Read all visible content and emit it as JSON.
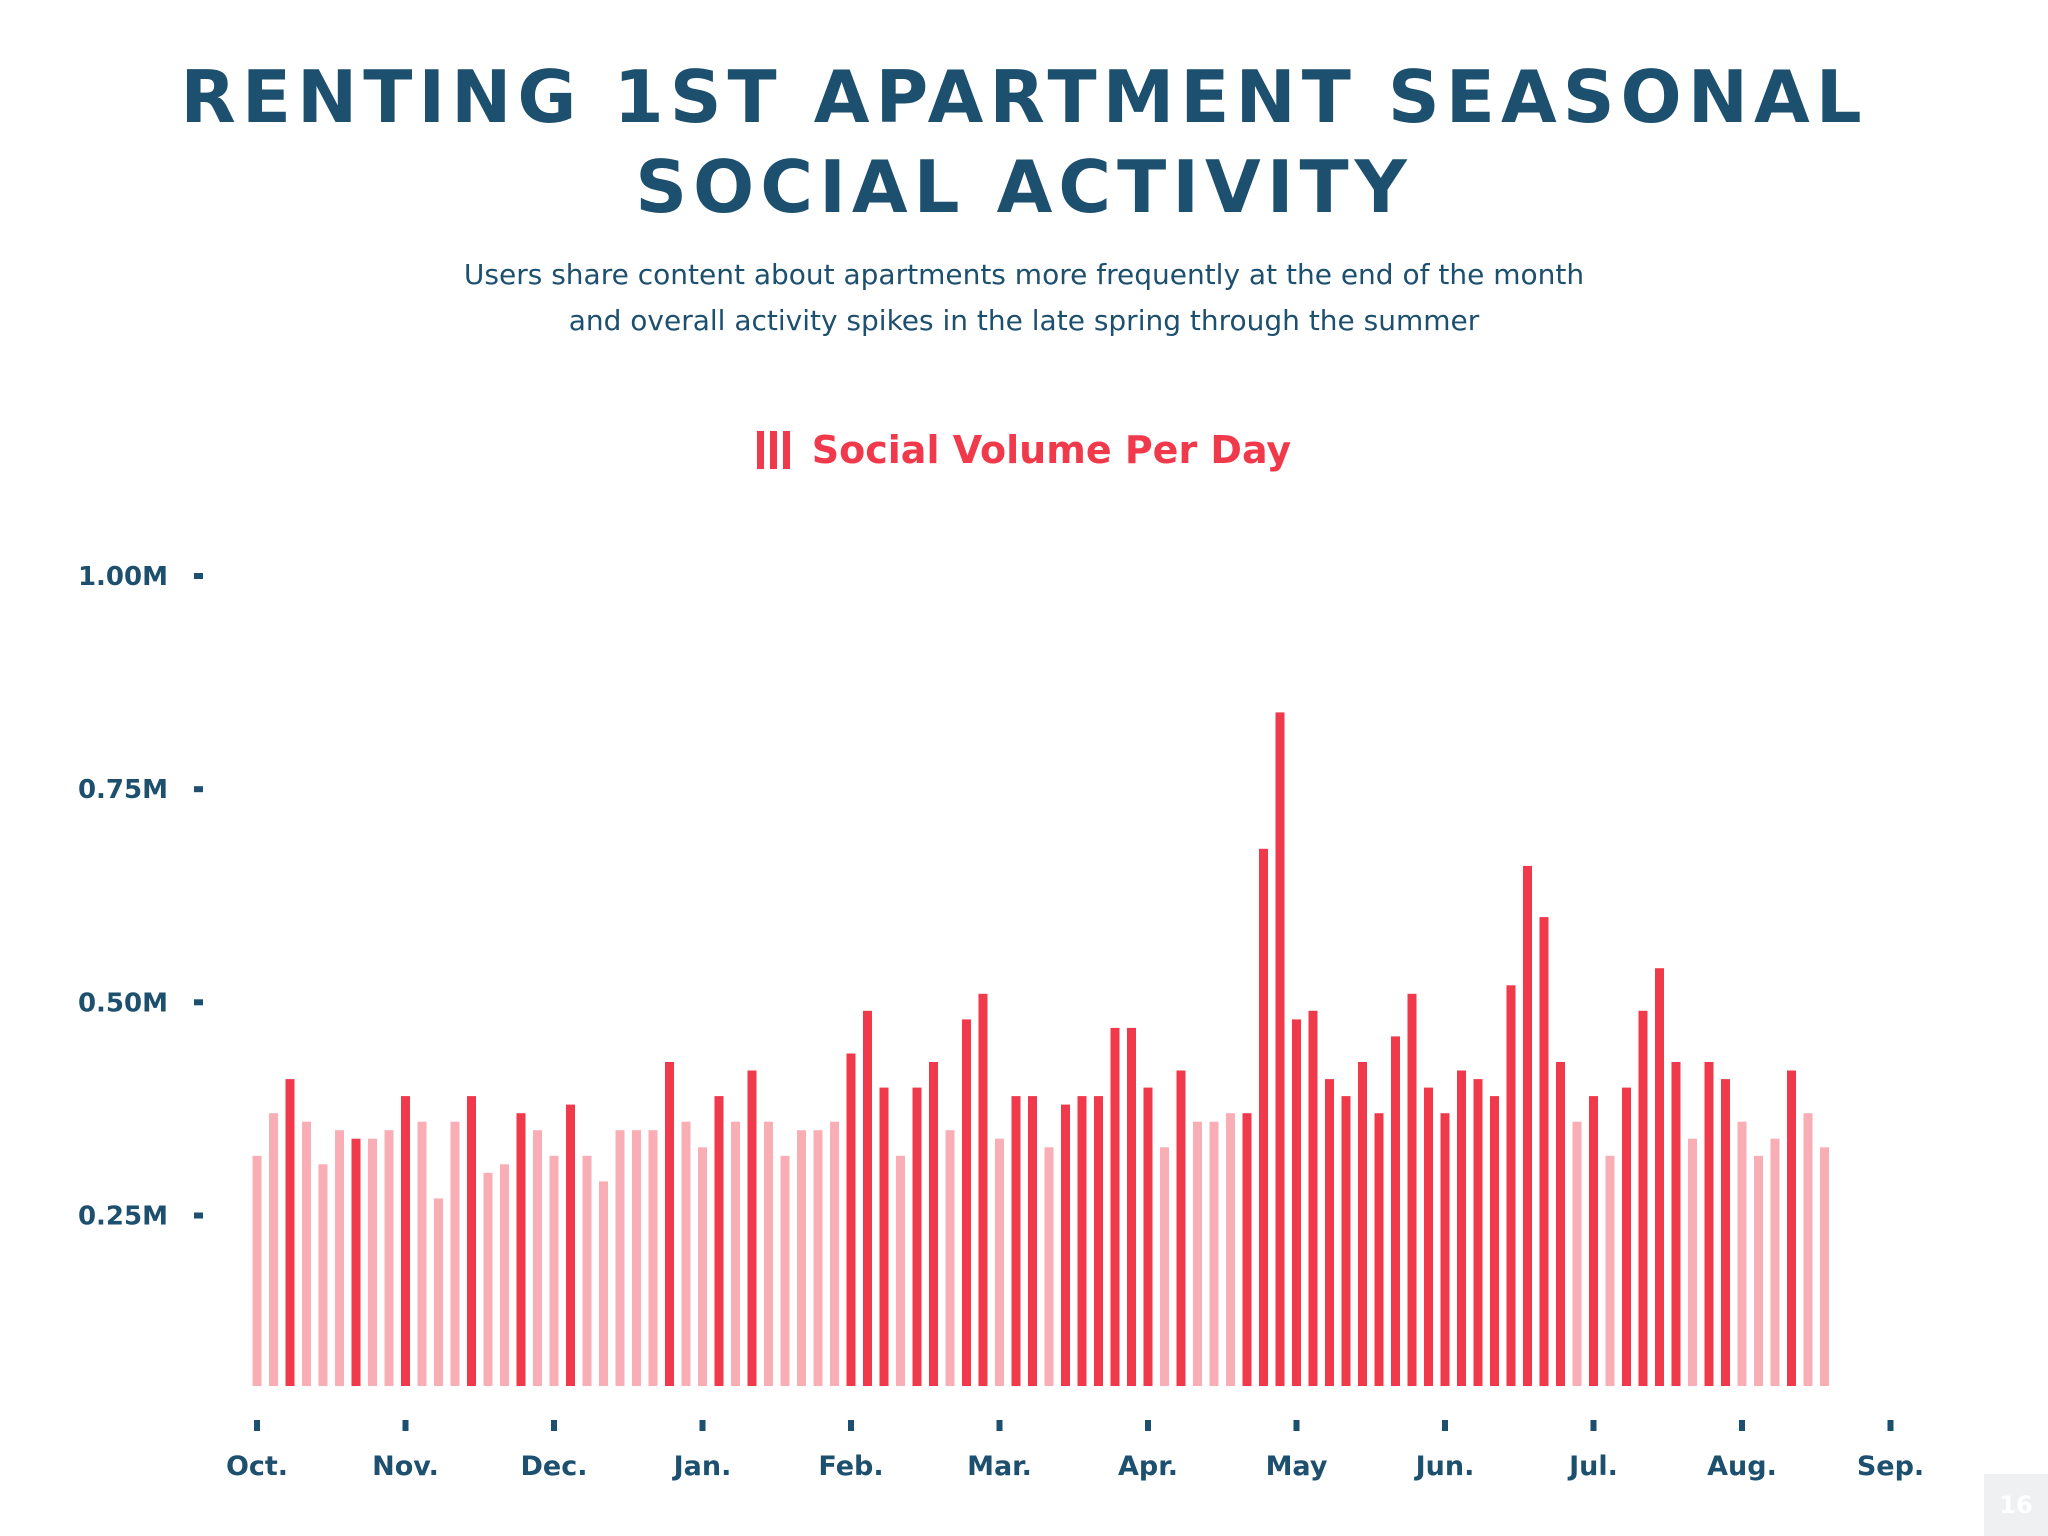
{
  "header": {
    "title_line1": "RENTING 1ST APARTMENT SEASONAL",
    "title_line2": "SOCIAL ACTIVITY",
    "subtitle_line1": "Users share content about apartments more frequently at the end of the month",
    "subtitle_line2": "and overall activity spikes in the late spring through the summer"
  },
  "legend": {
    "label": "Social Volume Per Day"
  },
  "page_number": "16",
  "colors": {
    "strong": "#f0394a",
    "light": "#f9aeb5",
    "text": "#1d4f6e"
  },
  "chart_data": {
    "type": "bar",
    "title": "RENTING 1ST APARTMENT SEASONAL SOCIAL ACTIVITY",
    "series_name": "Social Volume Per Day",
    "y_ticks": [
      {
        "value": 1.0,
        "label": "1.00M"
      },
      {
        "value": 0.75,
        "label": "0.75M"
      },
      {
        "value": 0.5,
        "label": "0.50M"
      },
      {
        "value": 0.25,
        "label": "0.25M"
      }
    ],
    "x_ticks": [
      {
        "index": 0,
        "label": "Oct."
      },
      {
        "index": 9,
        "label": "Nov."
      },
      {
        "index": 18,
        "label": "Dec."
      },
      {
        "index": 27,
        "label": "Jan."
      },
      {
        "index": 36,
        "label": "Feb."
      },
      {
        "index": 45,
        "label": "Mar."
      },
      {
        "index": 54,
        "label": "Apr."
      },
      {
        "index": 63,
        "label": "May"
      },
      {
        "index": 72,
        "label": "Jun."
      },
      {
        "index": 81,
        "label": "Jul."
      },
      {
        "index": 90,
        "label": "Aug."
      },
      {
        "index": 99,
        "label": "Sep."
      }
    ],
    "ylim": [
      0.05,
      1.0
    ],
    "values": [
      0.32,
      0.37,
      0.41,
      0.36,
      0.31,
      0.35,
      0.34,
      0.34,
      0.35,
      0.39,
      0.36,
      0.27,
      0.36,
      0.39,
      0.3,
      0.31,
      0.37,
      0.35,
      0.32,
      0.38,
      0.32,
      0.29,
      0.35,
      0.35,
      0.35,
      0.43,
      0.36,
      0.33,
      0.39,
      0.36,
      0.42,
      0.36,
      0.32,
      0.35,
      0.35,
      0.36,
      0.44,
      0.49,
      0.4,
      0.32,
      0.4,
      0.43,
      0.35,
      0.48,
      0.51,
      0.34,
      0.39,
      0.39,
      0.33,
      0.38,
      0.39,
      0.39,
      0.47,
      0.47,
      0.4,
      0.33,
      0.42,
      0.36,
      0.36,
      0.37,
      0.37,
      0.68,
      0.84,
      0.48,
      0.49,
      0.41,
      0.39,
      0.43,
      0.37,
      0.46,
      0.51,
      0.4,
      0.37,
      0.42,
      0.41,
      0.39,
      0.52,
      0.66,
      0.6,
      0.43,
      0.36,
      0.39,
      0.32,
      0.4,
      0.49,
      0.54,
      0.43,
      0.34,
      0.43,
      0.41,
      0.36,
      0.32,
      0.34,
      0.42,
      0.37,
      0.33
    ],
    "highlight": [
      0,
      0,
      1,
      0,
      0,
      0,
      1,
      0,
      0,
      1,
      0,
      0,
      0,
      1,
      0,
      0,
      1,
      0,
      0,
      1,
      0,
      0,
      0,
      0,
      0,
      1,
      0,
      0,
      1,
      0,
      1,
      0,
      0,
      0,
      0,
      0,
      1,
      1,
      1,
      0,
      1,
      1,
      0,
      1,
      1,
      0,
      1,
      1,
      0,
      1,
      1,
      1,
      1,
      1,
      1,
      0,
      1,
      0,
      0,
      0,
      1,
      1,
      1,
      1,
      1,
      1,
      1,
      1,
      1,
      1,
      1,
      1,
      1,
      1,
      1,
      1,
      1,
      1,
      1,
      1,
      0,
      1,
      0,
      1,
      1,
      1,
      1,
      0,
      1,
      1,
      0,
      0,
      0,
      1,
      0,
      0
    ]
  }
}
